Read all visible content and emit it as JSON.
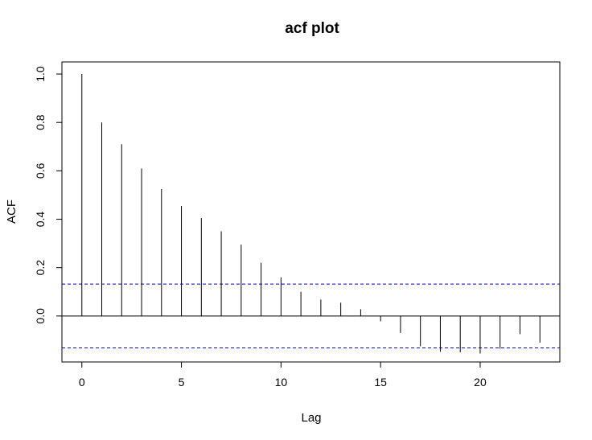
{
  "chart_data": {
    "type": "bar",
    "title": "acf plot",
    "xlabel": "Lag",
    "ylabel": "ACF",
    "xlim": [
      -1,
      24
    ],
    "ylim": [
      -0.19,
      1.05
    ],
    "x_ticks": [
      0,
      5,
      10,
      15,
      20
    ],
    "y_ticks": [
      0.0,
      0.2,
      0.4,
      0.6,
      0.8,
      1.0
    ],
    "x_tick_labels": [
      "0",
      "5",
      "10",
      "15",
      "20"
    ],
    "y_tick_labels": [
      "0.0",
      "0.2",
      "0.4",
      "0.6",
      "0.8",
      "1.0"
    ],
    "lags": [
      0,
      1,
      2,
      3,
      4,
      5,
      6,
      7,
      8,
      9,
      10,
      11,
      12,
      13,
      14,
      15,
      16,
      17,
      18,
      19,
      20,
      21,
      22,
      23
    ],
    "values": [
      1.0,
      0.8,
      0.71,
      0.61,
      0.525,
      0.455,
      0.405,
      0.35,
      0.295,
      0.22,
      0.16,
      0.1,
      0.068,
      0.055,
      0.028,
      -0.022,
      -0.07,
      -0.125,
      -0.148,
      -0.15,
      -0.155,
      -0.135,
      -0.075,
      -0.11
    ],
    "confidence_bounds": [
      0.132,
      -0.132
    ],
    "colors": {
      "spike": "#000000",
      "bound": "#0000cc",
      "zero": "#000000"
    },
    "grid": false,
    "legend": "none"
  }
}
